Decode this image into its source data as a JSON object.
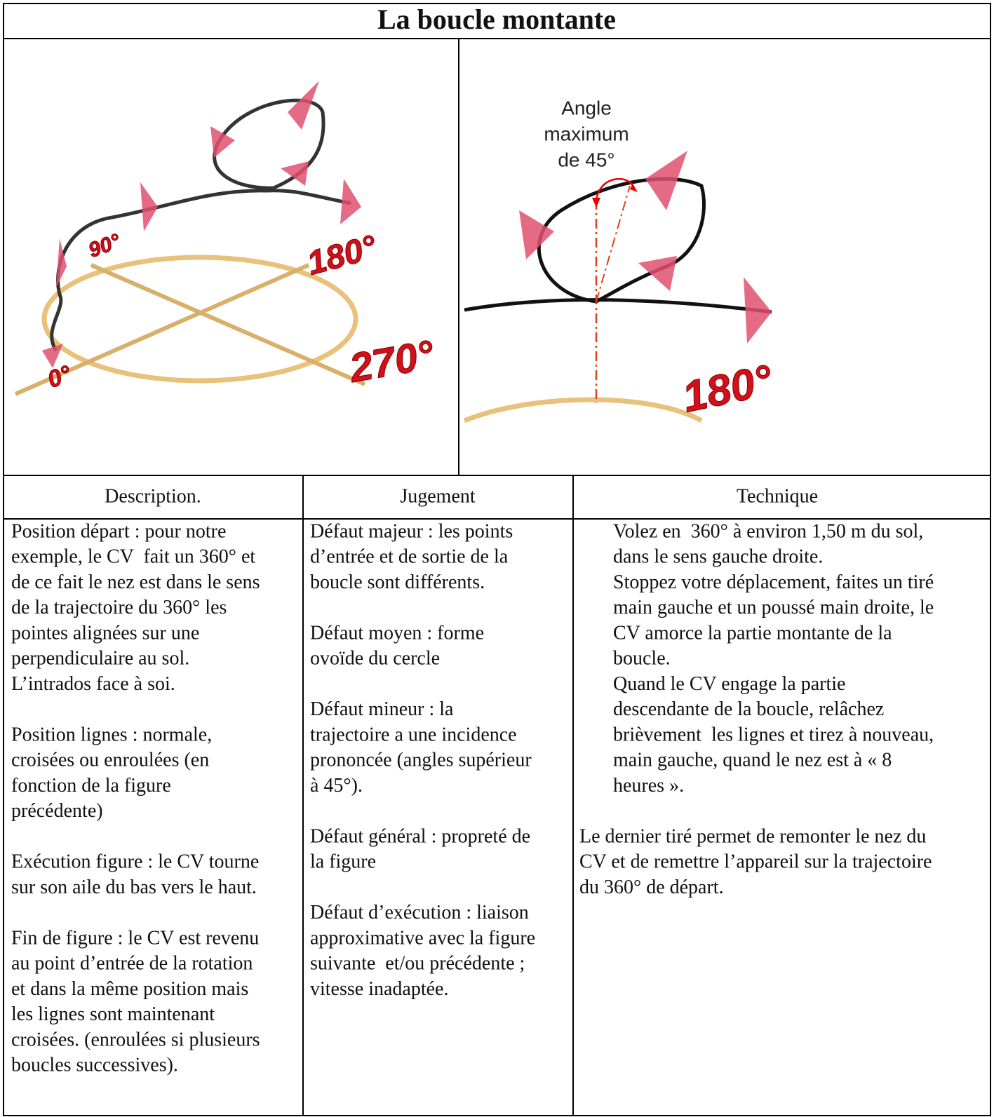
{
  "header": {
    "title": "La boucle montante"
  },
  "images": {
    "left": {
      "labels": [
        "90°",
        "180°",
        "270°",
        "0°"
      ]
    },
    "right": {
      "annotation": [
        "Angle",
        "maximum",
        "de 45°"
      ],
      "labels": [
        "180°"
      ]
    }
  },
  "table": {
    "headers": [
      "Description.",
      "Jugement",
      "Technique"
    ],
    "columns": [
      [
        [
          "Position départ : pour notre",
          "exemple, le CV  fait un 360° et",
          "de ce fait le nez est dans le sens",
          "de la trajectoire du 360° les",
          "pointes alignées sur une",
          "perpendiculaire au sol.",
          "L’intrados face à soi."
        ],
        [
          "Position lignes : normale,",
          "croisées ou enroulées (en",
          "fonction de la figure",
          "précédente)"
        ],
        [
          "Exécution figure : le CV tourne",
          "sur son aile du bas vers le haut."
        ],
        [
          "Fin de figure : le CV est revenu",
          "au point d’entrée de la rotation",
          "et dans la même position mais",
          "les lignes sont maintenant",
          "croisées. (enroulées si plusieurs",
          "boucles successives)."
        ]
      ],
      [
        [
          "Défaut majeur : les points",
          "d’entrée et de sortie de la",
          "boucle sont différents."
        ],
        [
          "Défaut moyen : forme",
          "ovoïde du cercle"
        ],
        [
          "Défaut mineur : la",
          "trajectoire a une incidence",
          "prononcée (angles supérieur",
          "à 45°)."
        ],
        [
          "Défaut général : propreté de",
          "la figure"
        ],
        [
          "Défaut d’exécution : liaison",
          "approximative avec la figure",
          "suivante  et/ou précédente ;",
          "vitesse inadaptée."
        ]
      ],
      [
        [
          "Volez en  360° à environ 1,50 m du sol,",
          "dans le sens gauche droite.",
          "Stoppez votre déplacement, faites un tiré",
          "main gauche et un poussé main droite, le",
          "CV amorce la partie montante de la",
          "boucle.",
          "Quand le CV engage la partie",
          "descendante de la boucle, relâchez",
          "brièvement  les lignes et tirez à nouveau,",
          "main gauche, quand le nez est à « 8",
          "heures »."
        ],
        [
          "Le dernier tiré permet de remonter le nez du",
          "CV et de remettre l’appareil sur la trajectoire",
          "du 360° de départ."
        ]
      ]
    ]
  }
}
